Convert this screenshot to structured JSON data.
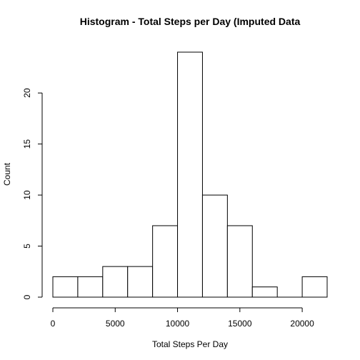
{
  "chart_data": {
    "type": "bar",
    "title": "Histogram - Total Steps per Day (Imputed Data",
    "xlabel": "Total Steps Per Day",
    "ylabel": "Count",
    "bins": [
      {
        "start": 0,
        "end": 2000,
        "count": 2
      },
      {
        "start": 2000,
        "end": 4000,
        "count": 2
      },
      {
        "start": 4000,
        "end": 6000,
        "count": 3
      },
      {
        "start": 6000,
        "end": 8000,
        "count": 3
      },
      {
        "start": 8000,
        "end": 10000,
        "count": 7
      },
      {
        "start": 10000,
        "end": 12000,
        "count": 24
      },
      {
        "start": 12000,
        "end": 14000,
        "count": 10
      },
      {
        "start": 14000,
        "end": 16000,
        "count": 7
      },
      {
        "start": 16000,
        "end": 18000,
        "count": 1
      },
      {
        "start": 18000,
        "end": 20000,
        "count": 0
      },
      {
        "start": 20000,
        "end": 22000,
        "count": 2
      }
    ],
    "xlim": [
      0,
      22000
    ],
    "ylim": [
      0,
      24
    ],
    "xticks": [
      0,
      5000,
      10000,
      15000,
      20000
    ],
    "yticks": [
      0,
      5,
      10,
      15,
      20
    ],
    "grid": false,
    "colors": {
      "bar_fill": "#ffffff",
      "bar_stroke": "#000000"
    }
  }
}
